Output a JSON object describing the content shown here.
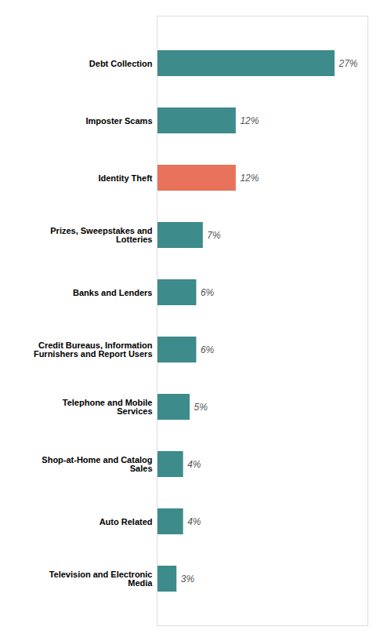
{
  "chart_data": {
    "type": "bar",
    "orientation": "horizontal",
    "categories": [
      "Television and Electronic\nMedia",
      "Auto Related",
      "Shop-at-Home and Catalog\nSales",
      "Telephone and Mobile\nServices",
      "Credit Bureaus, Information\nFurnishers and Report Users",
      "Banks and Lenders",
      "Prizes, Sweepstakes and\nLotteries",
      "Identity Theft",
      "Imposter Scams",
      "Debt Collection"
    ],
    "values": [
      3,
      4,
      4,
      5,
      6,
      6,
      7,
      12,
      12,
      27
    ],
    "value_labels": [
      "3%",
      "4%",
      "4%",
      "5%",
      "6%",
      "6%",
      "7%",
      "12%",
      "12%",
      "27%"
    ],
    "colors": [
      "#3d8b8b",
      "#3d8b8b",
      "#3d8b8b",
      "#3d8b8b",
      "#3d8b8b",
      "#3d8b8b",
      "#3d8b8b",
      "#e8725a",
      "#3d8b8b",
      "#3d8b8b"
    ],
    "xlim": [
      0,
      32
    ],
    "data_labels": true,
    "tick_labels": "y",
    "grid": false
  }
}
